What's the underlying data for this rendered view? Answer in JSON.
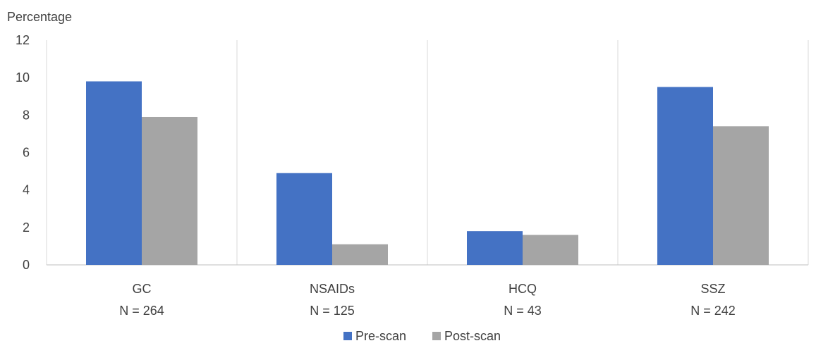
{
  "chart_data": {
    "type": "bar",
    "ylabel": "Percentage",
    "ylim": [
      0,
      12
    ],
    "yticks": [
      0,
      2,
      4,
      6,
      8,
      10,
      12
    ],
    "grid": "vertical category separators",
    "legend_position": "bottom",
    "categories": [
      {
        "name": "GC",
        "n": "N = 264"
      },
      {
        "name": "NSAIDs",
        "n": "N = 125"
      },
      {
        "name": "HCQ",
        "n": "N = 43"
      },
      {
        "name": "SSZ",
        "n": "N = 242"
      }
    ],
    "series": [
      {
        "name": "Pre-scan",
        "color": "#4472c4",
        "values": [
          9.8,
          4.9,
          1.8,
          9.5
        ]
      },
      {
        "name": "Post-scan",
        "color": "#a5a5a5",
        "values": [
          7.9,
          1.1,
          1.6,
          7.4
        ]
      }
    ]
  }
}
